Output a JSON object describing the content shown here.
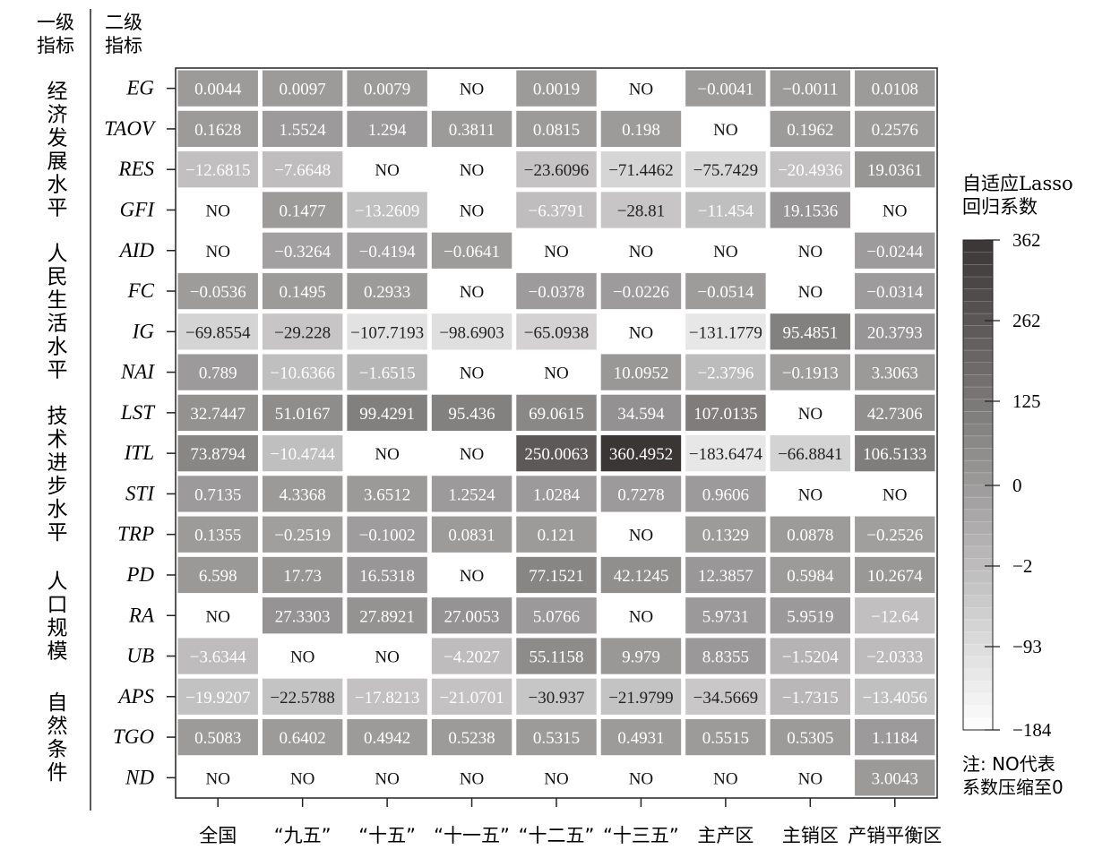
{
  "header": {
    "level1": [
      "一级",
      "指标"
    ],
    "level2": [
      "二级",
      "指标"
    ]
  },
  "categories": [
    {
      "label": "经济发展水平",
      "rows": 4
    },
    {
      "label": "人民生活水平",
      "rows": 4
    },
    {
      "label": "技术进步水平",
      "rows": 4
    },
    {
      "label": "人口规模",
      "rows": 3
    },
    {
      "label": "自然条件",
      "rows": 3
    }
  ],
  "legend": {
    "title": [
      "自适应Lasso",
      "回归系数"
    ],
    "ticks": [
      "362",
      "262",
      "125",
      "0",
      "−2",
      "−93",
      "−184"
    ],
    "color_high": "#3a3535",
    "color_low": "#ffffff"
  },
  "note": [
    "注: NO代表",
    "系数压缩至0"
  ],
  "chart_data": {
    "type": "heatmap",
    "columns": [
      "全国",
      "“九五”",
      "“十五”",
      "“十一五”",
      "“十二五”",
      "“十三五”",
      "主产区",
      "主销区",
      "产销平衡区"
    ],
    "rows": [
      "EG",
      "TAOV",
      "RES",
      "GFI",
      "AID",
      "FC",
      "IG",
      "NAI",
      "LST",
      "ITL",
      "STI",
      "TRP",
      "PD",
      "RA",
      "UB",
      "APS",
      "TGO",
      "ND"
    ],
    "values": [
      [
        "0.0044",
        "0.0097",
        "0.0079",
        "NO",
        "0.0019",
        "NO",
        "−0.0041",
        "−0.0011",
        "0.0108"
      ],
      [
        "0.1628",
        "1.5524",
        "1.294",
        "0.3811",
        "0.0815",
        "0.198",
        "NO",
        "0.1962",
        "0.2576"
      ],
      [
        "−12.6815",
        "−7.6648",
        "NO",
        "NO",
        "−23.6096",
        "−71.4462",
        "−75.7429",
        "−20.4936",
        "19.0361"
      ],
      [
        "NO",
        "0.1477",
        "−13.2609",
        "NO",
        "−6.3791",
        "−28.81",
        "−11.454",
        "19.1536",
        "NO"
      ],
      [
        "NO",
        "−0.3264",
        "−0.4194",
        "−0.0641",
        "NO",
        "NO",
        "NO",
        "NO",
        "−0.0244"
      ],
      [
        "−0.0536",
        "0.1495",
        "0.2933",
        "NO",
        "−0.0378",
        "−0.0226",
        "−0.0514",
        "NO",
        "−0.0314"
      ],
      [
        "−69.8554",
        "−29.228",
        "−107.7193",
        "−98.6903",
        "−65.0938",
        "NO",
        "−131.1779",
        "95.4851",
        "20.3793"
      ],
      [
        "0.789",
        "−10.6366",
        "−1.6515",
        "NO",
        "NO",
        "10.0952",
        "−2.3796",
        "−0.1913",
        "3.3063"
      ],
      [
        "32.7447",
        "51.0167",
        "99.4291",
        "95.436",
        "69.0615",
        "34.594",
        "107.0135",
        "NO",
        "42.7306"
      ],
      [
        "73.8794",
        "−10.4744",
        "NO",
        "NO",
        "250.0063",
        "360.4952",
        "−183.6474",
        "−66.8841",
        "106.5133"
      ],
      [
        "0.7135",
        "4.3368",
        "3.6512",
        "1.2524",
        "1.0284",
        "0.7278",
        "0.9606",
        "NO",
        "NO"
      ],
      [
        "0.1355",
        "−0.2519",
        "−0.1002",
        "0.0831",
        "0.121",
        "NO",
        "0.1329",
        "0.0878",
        "−0.2526"
      ],
      [
        "6.598",
        "17.73",
        "16.5318",
        "NO",
        "77.1521",
        "42.1245",
        "12.3857",
        "0.5984",
        "10.2674"
      ],
      [
        "NO",
        "27.3303",
        "27.8921",
        "27.0053",
        "5.0766",
        "NO",
        "5.9731",
        "5.9519",
        "−12.64"
      ],
      [
        "−3.6344",
        "NO",
        "NO",
        "−4.2027",
        "55.1158",
        "9.979",
        "8.8355",
        "−1.5204",
        "−2.0333"
      ],
      [
        "−19.9207",
        "−22.5788",
        "−17.8213",
        "−21.0701",
        "−30.937",
        "−21.9799",
        "−34.5669",
        "−1.7315",
        "−13.4056"
      ],
      [
        "0.5083",
        "0.6402",
        "0.4942",
        "0.5238",
        "0.5315",
        "0.4931",
        "0.5515",
        "0.5305",
        "1.1184"
      ],
      [
        "NO",
        "NO",
        "NO",
        "NO",
        "NO",
        "NO",
        "NO",
        "NO",
        "3.0043"
      ]
    ],
    "scale": {
      "min": -184,
      "max": 362,
      "ticks": [
        362,
        262,
        125,
        0,
        -2,
        -93,
        -184
      ]
    }
  }
}
